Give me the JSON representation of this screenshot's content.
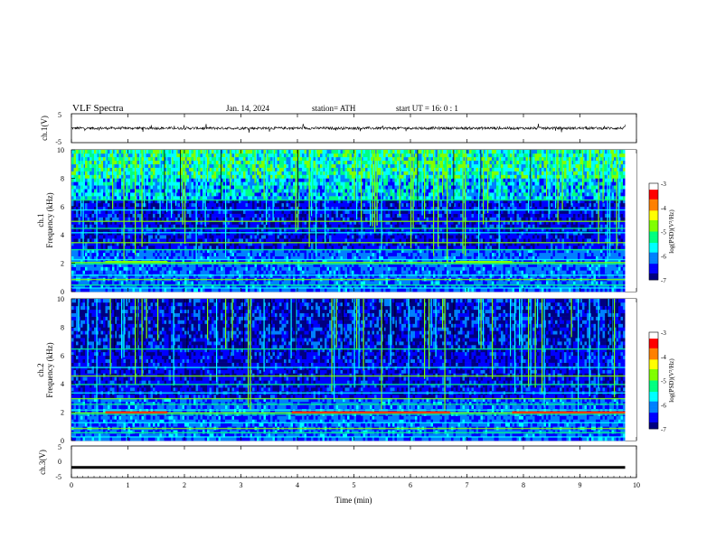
{
  "header": {
    "title": "VLF  Spectra",
    "date": "Jan. 14, 2024",
    "station": "station= ATH",
    "start": "start  UT  =    16: 0   : 1"
  },
  "colors": {
    "colormap": [
      "#000080",
      "#0000ff",
      "#0080ff",
      "#00ffff",
      "#00ff80",
      "#80ff00",
      "#ffff00",
      "#ff8000",
      "#ff0000",
      "#ffffff"
    ],
    "trace": "#000000"
  },
  "chart_data": [
    {
      "type": "line",
      "id": "ch1-waveform",
      "ylabel": "ch.1(V)",
      "ylim": [
        -5,
        5
      ],
      "yticks": [
        "5",
        "-5"
      ],
      "xlim": [
        0,
        10
      ],
      "note_values": "noisy waveform near 0 V, amplitude about ±0.5 V with spikes to about ±1.5 V, spanning 0–9.8 min"
    },
    {
      "type": "heatmap",
      "id": "ch1-spectrogram",
      "ylabel": "ch.1\nFrequency (kHz)",
      "ylim": [
        0,
        10
      ],
      "yticks": [
        "0",
        "2",
        "4",
        "6",
        "8",
        "10"
      ],
      "xlim": [
        0,
        9.8
      ],
      "colorbar": {
        "label": "log(PSD)(V²/Hz)",
        "range": [
          -7,
          -3
        ],
        "ticks": [
          "-3",
          "-4",
          "-5",
          "-6",
          "-7"
        ]
      },
      "bands_khz": [
        0.3,
        0.5,
        0.9,
        1.2,
        2.0,
        2.1,
        2.3,
        3.0,
        3.5,
        4.2,
        4.5,
        5.0,
        5.8,
        6.5
      ],
      "bright_band": {
        "freq_khz": 2.1,
        "segments_min": [
          [
            0.6,
            1.7
          ],
          [
            6.8,
            7.8
          ]
        ]
      },
      "upper_band_level": {
        "from_khz": 6.5,
        "to_khz": 10,
        "log_psd": -5
      }
    },
    {
      "type": "heatmap",
      "id": "ch2-spectrogram",
      "ylabel": "ch.2\nFrequency (kHz)",
      "ylim": [
        0,
        10
      ],
      "yticks": [
        "0",
        "2",
        "4",
        "6",
        "8",
        "10"
      ],
      "xlim": [
        0,
        9.8
      ],
      "colorbar": {
        "label": "log(PSD)(V²/Hz)",
        "range": [
          -7,
          -3
        ],
        "ticks": [
          "-3",
          "-4",
          "-5",
          "-6",
          "-7"
        ]
      },
      "bands_khz": [
        0.3,
        0.6,
        0.9,
        1.3,
        1.9,
        2.0,
        2.2,
        2.6,
        3.0,
        3.4,
        4.0,
        4.6,
        5.2,
        6.5
      ],
      "bright_band": {
        "freq_khz": 2.0,
        "segments_min": [
          [
            0.6,
            1.7
          ],
          [
            3.9,
            6.7
          ],
          [
            7.8,
            9.8
          ]
        ]
      },
      "upper_band_level": {
        "from_khz": 6.5,
        "to_khz": 10,
        "log_psd": -6.5
      }
    },
    {
      "type": "line",
      "id": "ch3-waveform",
      "ylabel": "ch.3(V)",
      "ylim": [
        -5,
        5
      ],
      "yticks": [
        "5",
        "0",
        "-5"
      ],
      "xlim": [
        0,
        10
      ],
      "note_values": "flat thick trace at about -1.8 V from 0 to 9.8 min"
    }
  ],
  "xaxis": {
    "label": "Time  (min)",
    "ticks": [
      "0",
      "1",
      "2",
      "3",
      "4",
      "5",
      "6",
      "7",
      "8",
      "9",
      "10"
    ],
    "range": [
      0,
      10
    ]
  }
}
